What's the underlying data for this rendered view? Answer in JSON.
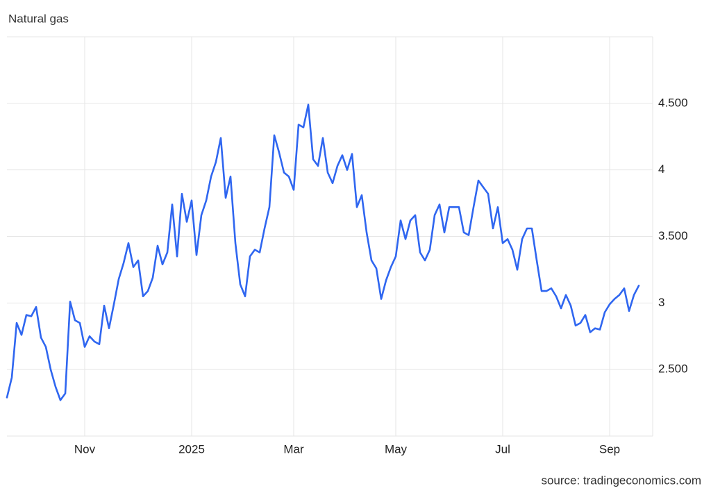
{
  "chart_data": {
    "type": "line",
    "title": "Natural gas",
    "source": "source: tradingeconomics.com",
    "categories": [
      null,
      null,
      null,
      null,
      null,
      null,
      null,
      null,
      null,
      null,
      null,
      null,
      null,
      null,
      null,
      null,
      "Nov",
      null,
      null,
      null,
      null,
      null,
      null,
      null,
      null,
      null,
      null,
      null,
      null,
      null,
      null,
      null,
      null,
      null,
      null,
      null,
      null,
      null,
      "2025",
      null,
      null,
      null,
      null,
      null,
      null,
      null,
      null,
      null,
      null,
      null,
      null,
      null,
      null,
      null,
      null,
      null,
      null,
      null,
      null,
      "Mar",
      null,
      null,
      null,
      null,
      null,
      null,
      null,
      null,
      null,
      null,
      null,
      null,
      null,
      null,
      null,
      null,
      null,
      null,
      null,
      null,
      "May",
      null,
      null,
      null,
      null,
      null,
      null,
      null,
      null,
      null,
      null,
      null,
      null,
      null,
      null,
      null,
      null,
      null,
      null,
      null,
      null,
      null,
      "Jul",
      null,
      null,
      null,
      null,
      null,
      null,
      null,
      null,
      null,
      null,
      null,
      null,
      null,
      null,
      null,
      null,
      null,
      null,
      null,
      null,
      null,
      "Sep",
      null,
      null,
      null,
      null,
      null,
      null
    ],
    "values": [
      2.29,
      2.44,
      2.85,
      2.76,
      2.91,
      2.9,
      2.97,
      2.74,
      2.67,
      2.5,
      2.37,
      2.27,
      2.32,
      3.01,
      2.87,
      2.85,
      2.67,
      2.75,
      2.71,
      2.69,
      2.98,
      2.81,
      2.99,
      3.18,
      3.3,
      3.45,
      3.27,
      3.32,
      3.05,
      3.09,
      3.19,
      3.43,
      3.29,
      3.38,
      3.74,
      3.35,
      3.82,
      3.61,
      3.77,
      3.36,
      3.66,
      3.77,
      3.95,
      4.06,
      4.24,
      3.79,
      3.95,
      3.45,
      3.14,
      3.05,
      3.35,
      3.4,
      3.38,
      3.56,
      3.72,
      4.26,
      4.13,
      3.98,
      3.95,
      3.85,
      4.34,
      4.32,
      4.49,
      4.08,
      4.03,
      4.24,
      3.98,
      3.9,
      4.03,
      4.11,
      4.0,
      4.12,
      3.72,
      3.81,
      3.53,
      3.32,
      3.26,
      3.03,
      3.17,
      3.27,
      3.35,
      3.62,
      3.48,
      3.62,
      3.66,
      3.38,
      3.32,
      3.4,
      3.66,
      3.74,
      3.53,
      3.72,
      3.72,
      3.72,
      3.53,
      3.51,
      3.72,
      3.92,
      3.87,
      3.82,
      3.56,
      3.72,
      3.45,
      3.48,
      3.4,
      3.25,
      3.48,
      3.56,
      3.56,
      3.32,
      3.09,
      3.09,
      3.11,
      3.05,
      2.96,
      3.06,
      2.98,
      2.83,
      2.85,
      2.91,
      2.78,
      2.81,
      2.8,
      2.93,
      2.99,
      3.03,
      3.06,
      3.11,
      2.94,
      3.06,
      3.13
    ],
    "color": "#2f66f0",
    "ylim": [
      2,
      5
    ],
    "yticks": [
      {
        "value": 2.5,
        "label": "2.500"
      },
      3,
      {
        "value": 3.5,
        "label": "3.500"
      },
      4,
      {
        "value": 4.5,
        "label": "4.500"
      }
    ],
    "grid": true
  }
}
